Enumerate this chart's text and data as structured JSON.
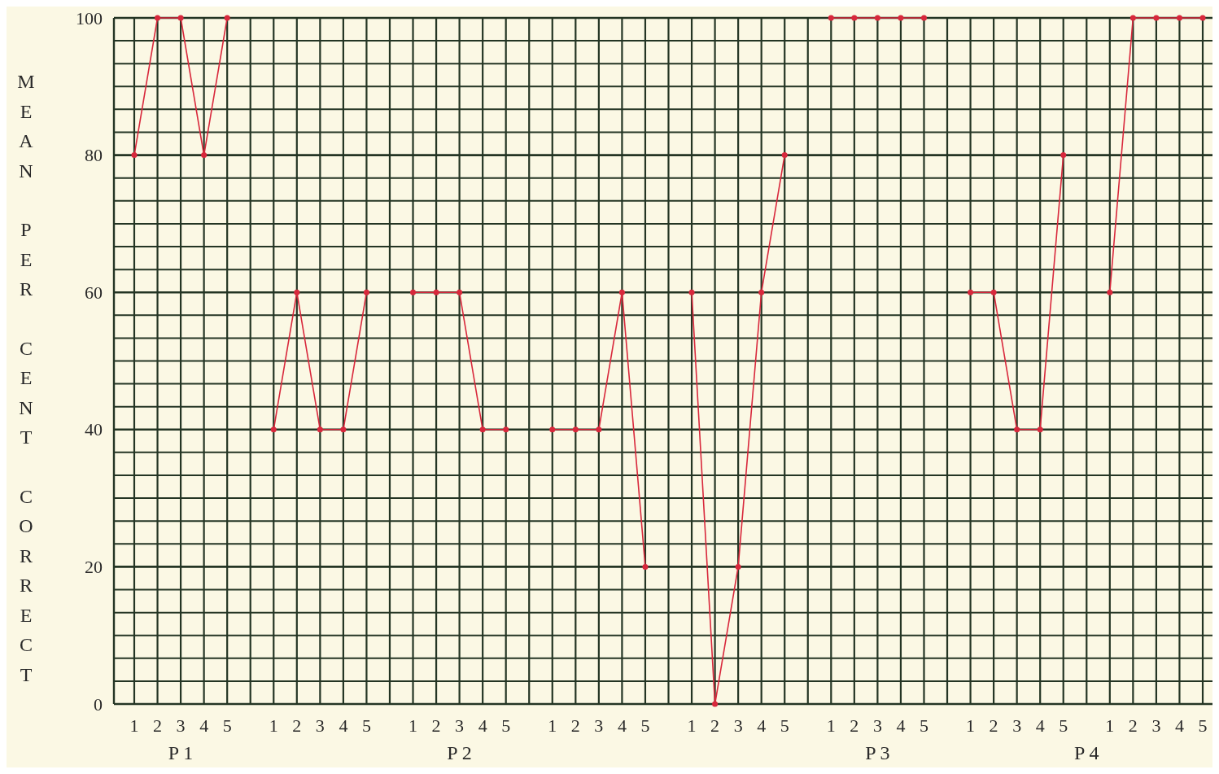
{
  "chart_data": {
    "type": "line",
    "ylabel": "MEAN PER CENT CORRECT",
    "categories": [
      "1",
      "2",
      "3",
      "4",
      "5",
      null,
      "1",
      "2",
      "3",
      "4",
      "5",
      null,
      "1",
      "2",
      "3",
      "4",
      "5",
      null,
      "1",
      "2",
      "3",
      "4",
      "5",
      null,
      "1",
      "2",
      "3",
      "4",
      "5",
      null,
      "1",
      "2",
      "3",
      "4",
      "5",
      null,
      "1",
      "2",
      "3",
      "4",
      "5",
      null,
      "1",
      "2",
      "3",
      "4",
      "5"
    ],
    "series": [
      {
        "color": "#d8283c",
        "values": [
          80,
          100,
          100,
          80,
          100,
          null,
          40,
          60,
          40,
          40,
          60,
          null,
          60,
          60,
          60,
          40,
          40,
          null,
          40,
          40,
          40,
          60,
          20,
          null,
          60,
          0,
          20,
          60,
          80,
          null,
          100,
          100,
          100,
          100,
          100,
          null,
          60,
          60,
          40,
          40,
          80,
          null,
          60,
          100,
          100,
          100,
          100
        ]
      }
    ],
    "ylim": [
      0,
      100
    ],
    "yticks": [
      0,
      {
        "value": 3.33,
        "label": null
      },
      {
        "value": 6.67,
        "label": null
      },
      {
        "value": 10,
        "label": null
      },
      {
        "value": 13.33,
        "label": null
      },
      {
        "value": 16.67,
        "label": null
      },
      20,
      {
        "value": 23.33,
        "label": null
      },
      {
        "value": 26.67,
        "label": null
      },
      {
        "value": 30,
        "label": null
      },
      {
        "value": 33.33,
        "label": null
      },
      {
        "value": 36.67,
        "label": null
      },
      40,
      {
        "value": 43.33,
        "label": null
      },
      {
        "value": 46.67,
        "label": null
      },
      {
        "value": 50,
        "label": null
      },
      {
        "value": 53.33,
        "label": null
      },
      {
        "value": 56.67,
        "label": null
      },
      60,
      {
        "value": 63.33,
        "label": null
      },
      {
        "value": 66.67,
        "label": null
      },
      {
        "value": 70,
        "label": null
      },
      {
        "value": 73.33,
        "label": null
      },
      {
        "value": 76.67,
        "label": null
      },
      80,
      {
        "value": 83.33,
        "label": null
      },
      {
        "value": 86.67,
        "label": null
      },
      {
        "value": 90,
        "label": null
      },
      {
        "value": 93.33,
        "label": null
      },
      {
        "value": 96.67,
        "label": null
      },
      100
    ],
    "annotations": [
      "P 1",
      "P 2",
      "P 3",
      "P 4"
    ],
    "grid": true,
    "marker": "circle",
    "line_style": "solid"
  }
}
